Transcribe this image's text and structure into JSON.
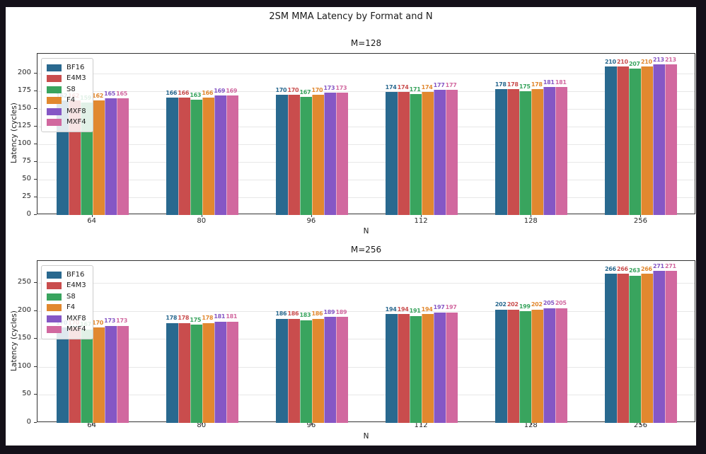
{
  "figure": {
    "title": "2SM MMA Latency by Format and N",
    "background_color": "#ffffff",
    "outer_background_color": "#141019",
    "text_color": "#1a1a1a",
    "spine_color": "#333333",
    "grid_color": "#e7e7e7"
  },
  "chart_data": [
    {
      "type": "bar",
      "title": "M=128",
      "xlabel": "N",
      "ylabel": "Latency (cycles)",
      "categories": [
        "64",
        "80",
        "96",
        "112",
        "128",
        "256"
      ],
      "yticks": [
        0,
        25,
        50,
        75,
        100,
        125,
        150,
        175,
        200
      ],
      "ylim": [
        0,
        228
      ],
      "grid": "horizontal",
      "legend_position": "upper-left",
      "bar_labels": true,
      "series": [
        {
          "name": "BF16",
          "color": "#29698f",
          "values": [
            162,
            166,
            170,
            174,
            178,
            210
          ]
        },
        {
          "name": "E4M3",
          "color": "#c94d4d",
          "values": [
            162,
            166,
            170,
            174,
            178,
            210
          ]
        },
        {
          "name": "S8",
          "color": "#39a45e",
          "values": [
            159,
            163,
            167,
            171,
            175,
            207
          ]
        },
        {
          "name": "F4",
          "color": "#e1882f",
          "values": [
            162,
            166,
            170,
            174,
            178,
            210
          ]
        },
        {
          "name": "MXF8",
          "color": "#8557c5",
          "values": [
            165,
            169,
            173,
            177,
            181,
            213
          ]
        },
        {
          "name": "MXF4",
          "color": "#d1689f",
          "values": [
            165,
            169,
            173,
            177,
            181,
            213
          ]
        }
      ]
    },
    {
      "type": "bar",
      "title": "M=256",
      "xlabel": "N",
      "ylabel": "Latency (cycles)",
      "categories": [
        "64",
        "80",
        "96",
        "112",
        "128",
        "256"
      ],
      "yticks": [
        0,
        50,
        100,
        150,
        200,
        250
      ],
      "ylim": [
        0,
        289
      ],
      "grid": "horizontal",
      "legend_position": "upper-left",
      "bar_labels": true,
      "series": [
        {
          "name": "BF16",
          "color": "#29698f",
          "values": [
            170,
            178,
            186,
            194,
            202,
            266
          ]
        },
        {
          "name": "E4M3",
          "color": "#c94d4d",
          "values": [
            170,
            178,
            186,
            194,
            202,
            266
          ]
        },
        {
          "name": "S8",
          "color": "#39a45e",
          "values": [
            167,
            175,
            183,
            191,
            199,
            263
          ]
        },
        {
          "name": "F4",
          "color": "#e1882f",
          "values": [
            170,
            178,
            186,
            194,
            202,
            266
          ]
        },
        {
          "name": "MXF8",
          "color": "#8557c5",
          "values": [
            173,
            181,
            189,
            197,
            205,
            271
          ]
        },
        {
          "name": "MXF4",
          "color": "#d1689f",
          "values": [
            173,
            181,
            189,
            197,
            205,
            271
          ]
        }
      ]
    }
  ]
}
